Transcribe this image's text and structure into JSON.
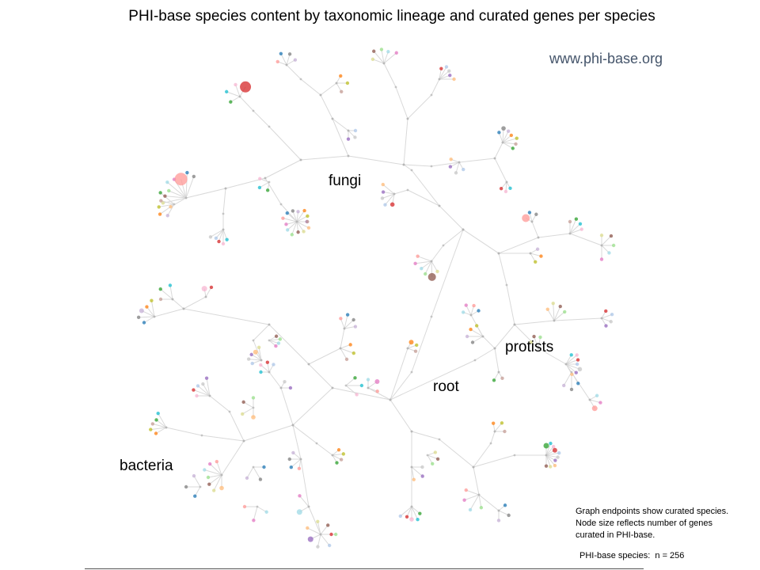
{
  "title": "PHI-base species content by taxonomic lineage and curated genes per species",
  "url": "www.phi-base.org",
  "labels": {
    "fungi": "fungi",
    "protists": "protists",
    "root": "root",
    "bacteria": "bacteria"
  },
  "caption": {
    "line1": "Graph endpoints show curated species.",
    "line2": "Node size reflects number of genes",
    "line3": "curated in PHI-base."
  },
  "species_count_label": "PHI-base species:",
  "species_count_value": "n = 256",
  "palette": [
    "#1f77b4",
    "#ff7f0e",
    "#2ca02c",
    "#d62728",
    "#9467bd",
    "#8c564b",
    "#e377c2",
    "#7f7f7f",
    "#bcbd22",
    "#17becf",
    "#aec7e8",
    "#ffbb78",
    "#98df8a",
    "#ff9896",
    "#c5b0d5",
    "#c49c94",
    "#f7b6d2",
    "#c7c7c7",
    "#dbdb8d",
    "#9edae5"
  ],
  "edge_color": "#d9d9d9"
}
